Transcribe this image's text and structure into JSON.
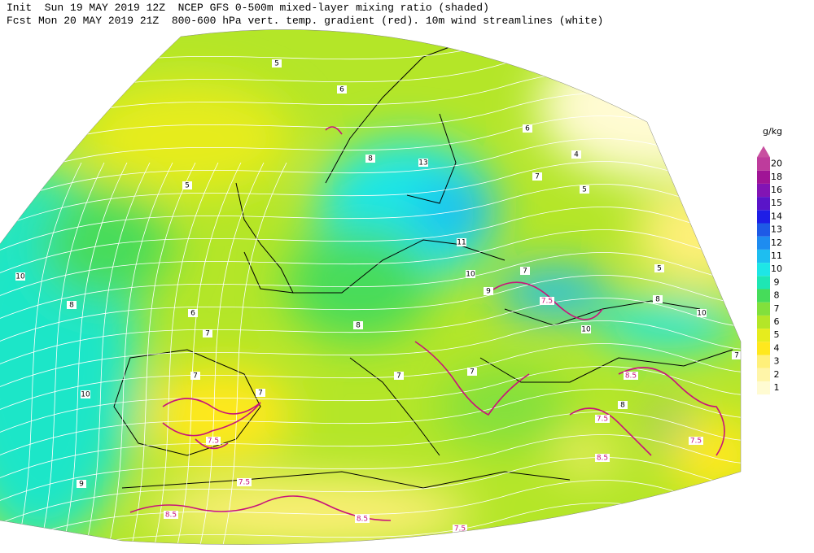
{
  "header": {
    "line1": "Init  Sun 19 MAY 2019 12Z  NCEP GFS 0-500m mixed-layer mixing ratio (shaded)",
    "line2": "Fcst Mon 20 MAY 2019 21Z  800-600 hPa vert. temp. gradient (red). 10m wind streamlines (white)"
  },
  "colorbar": {
    "unit": "g/kg",
    "levels": [
      1,
      2,
      3,
      4,
      5,
      6,
      7,
      8,
      9,
      10,
      11,
      12,
      13,
      14,
      15,
      16,
      18,
      20
    ],
    "colors": [
      "#fffbd2",
      "#fff5a8",
      "#fff07a",
      "#ffe81e",
      "#e6ec1e",
      "#b4e628",
      "#82e03c",
      "#46dc5a",
      "#1ee6b4",
      "#1ee6e6",
      "#1ebef0",
      "#1e8cf0",
      "#1e5ae6",
      "#1e1ee6",
      "#5a14c8",
      "#8214b4",
      "#a01496",
      "#be3c9c"
    ],
    "overflow_color": "#c850a0"
  },
  "map": {
    "mixing_ratio_labels": [
      "10",
      "10",
      "9",
      "8",
      "7",
      "6",
      "5",
      "5",
      "6",
      "8",
      "13",
      "11",
      "10",
      "9",
      "7",
      "10",
      "10",
      "8",
      "5",
      "7",
      "6",
      "5",
      "4",
      "7",
      "7",
      "8",
      "7",
      "8",
      "7",
      "7"
    ],
    "temp_gradient_labels": [
      "7.5",
      "7.5",
      "8.5",
      "8.5",
      "7.5",
      "7.5",
      "8.5",
      "8.5",
      "7.5",
      "7.5"
    ],
    "temp_gradient_color": "#c8147a",
    "streamline_color": "#ffffff"
  }
}
